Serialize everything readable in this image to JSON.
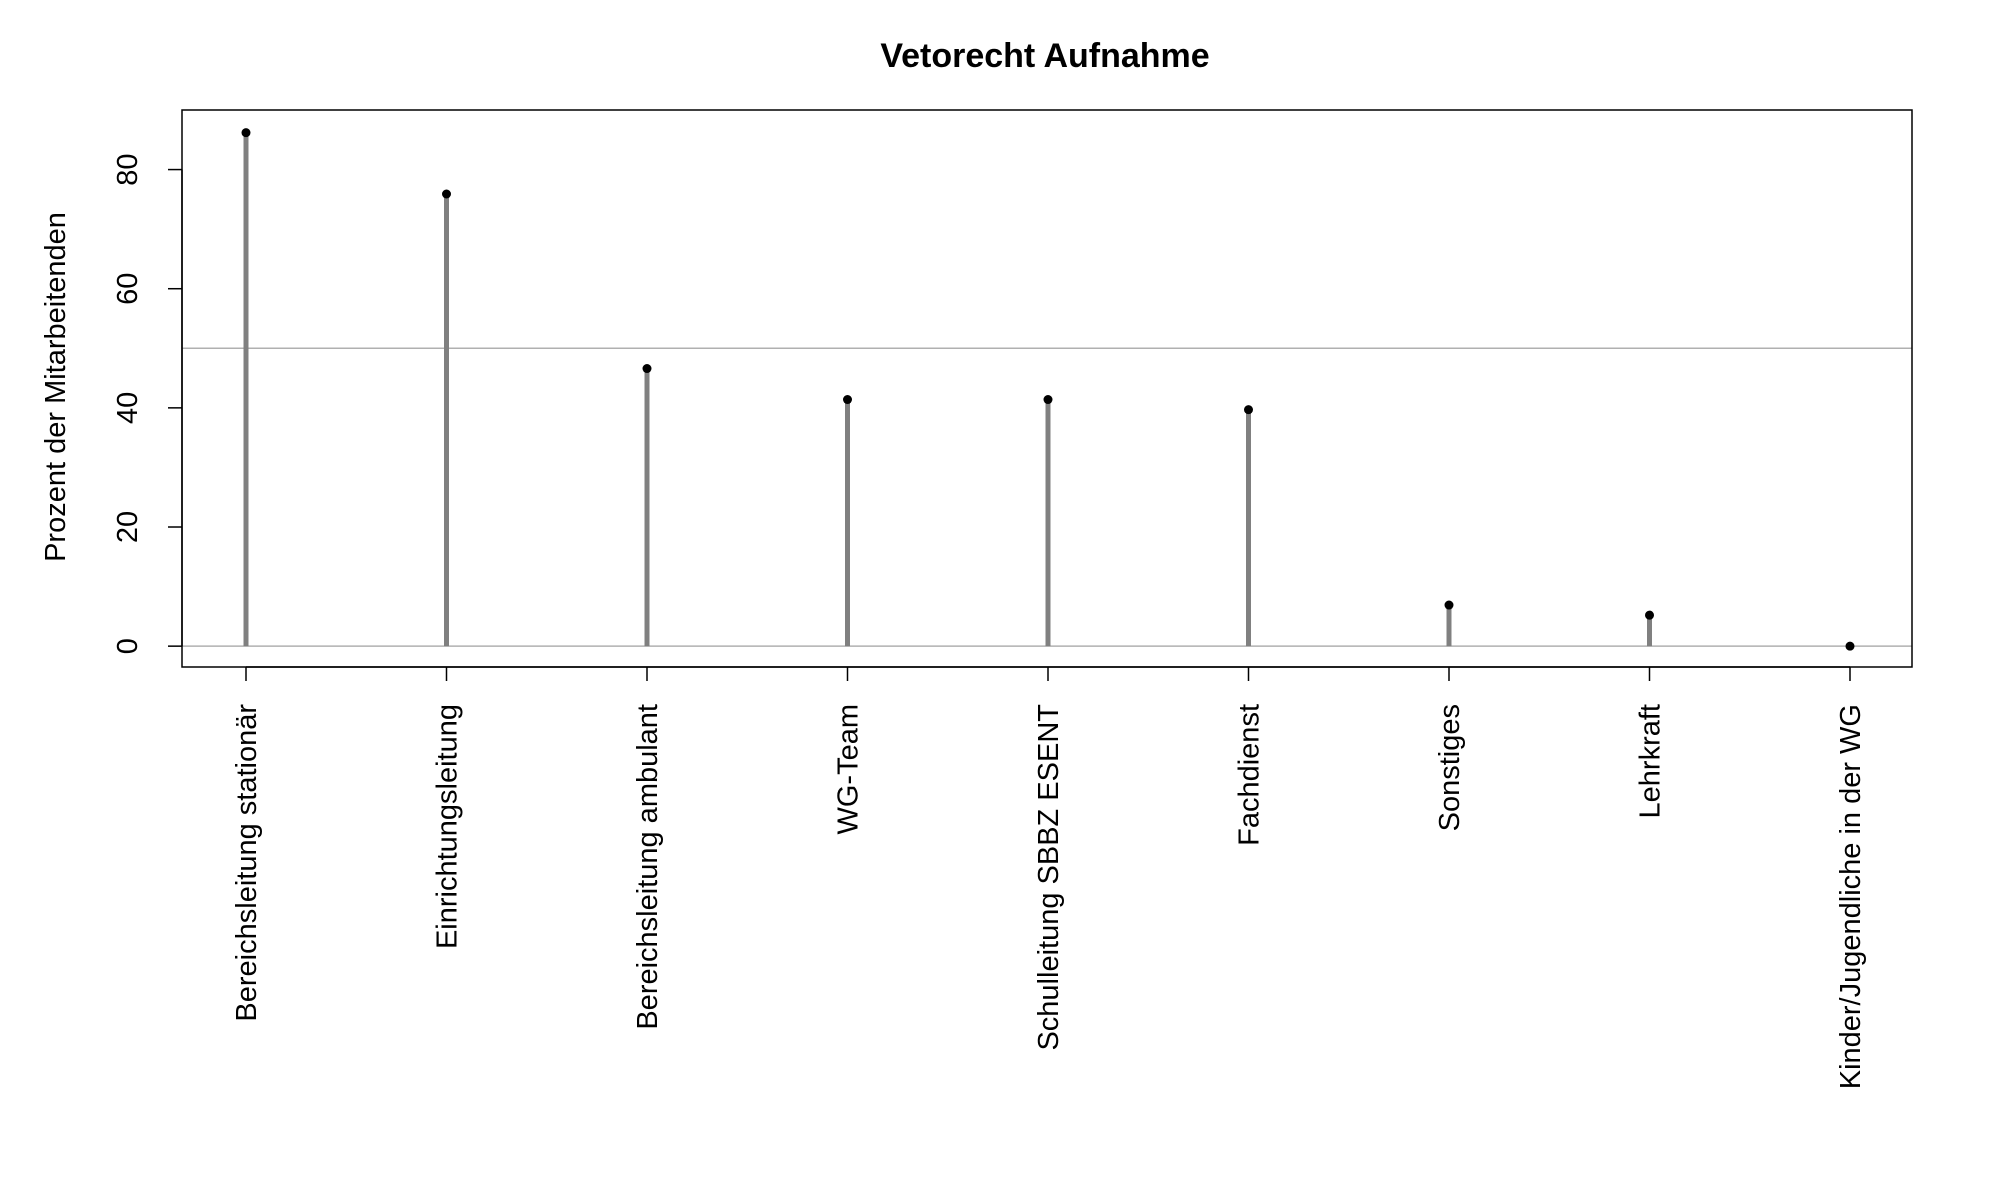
{
  "chart_data": {
    "type": "lollipop",
    "title": "Vetorecht Aufnahme",
    "ylabel": "Prozent der Mitarbeitenden",
    "xlabel": "",
    "ylim": [
      -3.5,
      90
    ],
    "yticks": [
      0,
      20,
      40,
      60,
      80
    ],
    "reference_lines": [
      0,
      50
    ],
    "categories": [
      "Bereichsleitung stationär",
      "Einrichtungsleitung",
      "Bereichsleitung ambulant",
      "WG-Team",
      "Schulleitung SBBZ ESENT",
      "Fachdienst",
      "Sonstiges",
      "Lehrkraft",
      "Kinder/Jugendliche in der WG"
    ],
    "values": [
      86.2,
      75.9,
      46.6,
      41.4,
      41.4,
      39.7,
      6.9,
      5.2,
      0
    ],
    "colors": {
      "stem": "#808080",
      "point": "#000000",
      "reference_line": "#b0b0b0",
      "frame": "#000000"
    },
    "grid": false
  }
}
